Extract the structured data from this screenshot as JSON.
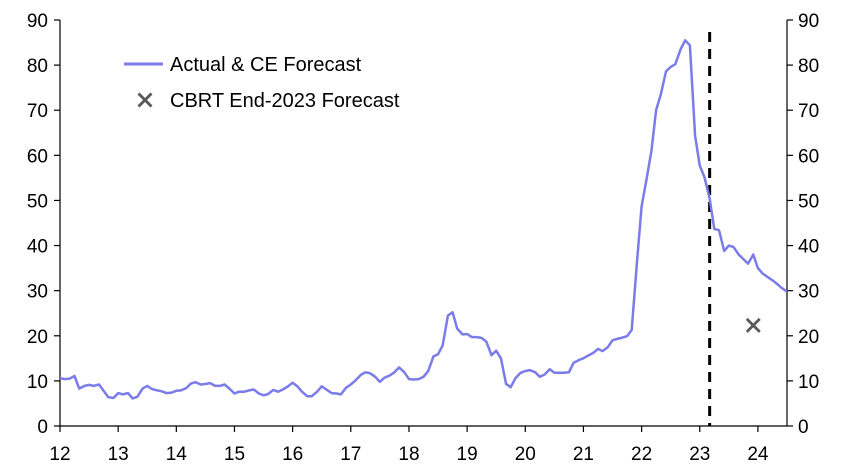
{
  "chart_data": {
    "type": "line",
    "title": "",
    "xlabel": "",
    "ylabel": "",
    "xlim": [
      12.0,
      24.5
    ],
    "ylim": [
      0,
      90
    ],
    "y_ticks": [
      0,
      10,
      20,
      30,
      40,
      50,
      60,
      70,
      80,
      90
    ],
    "x_ticks": [
      12,
      13,
      14,
      15,
      16,
      17,
      18,
      19,
      20,
      21,
      22,
      23,
      24
    ],
    "x_tick_labels": [
      "12",
      "13",
      "14",
      "15",
      "16",
      "17",
      "18",
      "19",
      "20",
      "21",
      "22",
      "23",
      "24"
    ],
    "grid": false,
    "legend_position": "top-left",
    "forecast_divider_x": 23.17,
    "series": [
      {
        "name": "Actual & CE Forecast",
        "color": "#7b7bea",
        "points": [
          [
            12.0,
            10.6
          ],
          [
            12.08,
            10.4
          ],
          [
            12.17,
            10.5
          ],
          [
            12.25,
            11.1
          ],
          [
            12.33,
            8.3
          ],
          [
            12.42,
            8.9
          ],
          [
            12.5,
            9.1
          ],
          [
            12.58,
            8.9
          ],
          [
            12.67,
            9.2
          ],
          [
            12.75,
            7.8
          ],
          [
            12.83,
            6.4
          ],
          [
            12.92,
            6.2
          ],
          [
            13.0,
            7.3
          ],
          [
            13.08,
            7.0
          ],
          [
            13.17,
            7.3
          ],
          [
            13.25,
            6.1
          ],
          [
            13.33,
            6.5
          ],
          [
            13.42,
            8.3
          ],
          [
            13.5,
            8.9
          ],
          [
            13.58,
            8.2
          ],
          [
            13.67,
            7.9
          ],
          [
            13.75,
            7.7
          ],
          [
            13.83,
            7.3
          ],
          [
            13.92,
            7.4
          ],
          [
            14.0,
            7.8
          ],
          [
            14.08,
            7.9
          ],
          [
            14.17,
            8.4
          ],
          [
            14.25,
            9.4
          ],
          [
            14.33,
            9.7
          ],
          [
            14.42,
            9.2
          ],
          [
            14.5,
            9.3
          ],
          [
            14.58,
            9.5
          ],
          [
            14.67,
            8.9
          ],
          [
            14.75,
            8.9
          ],
          [
            14.83,
            9.2
          ],
          [
            14.92,
            8.2
          ],
          [
            15.0,
            7.2
          ],
          [
            15.08,
            7.6
          ],
          [
            15.17,
            7.6
          ],
          [
            15.25,
            7.9
          ],
          [
            15.33,
            8.1
          ],
          [
            15.42,
            7.2
          ],
          [
            15.5,
            6.8
          ],
          [
            15.58,
            7.1
          ],
          [
            15.67,
            8.0
          ],
          [
            15.75,
            7.6
          ],
          [
            15.83,
            8.1
          ],
          [
            15.92,
            8.8
          ],
          [
            16.0,
            9.6
          ],
          [
            16.08,
            8.8
          ],
          [
            16.17,
            7.5
          ],
          [
            16.25,
            6.6
          ],
          [
            16.33,
            6.6
          ],
          [
            16.42,
            7.6
          ],
          [
            16.5,
            8.8
          ],
          [
            16.58,
            8.1
          ],
          [
            16.67,
            7.3
          ],
          [
            16.75,
            7.2
          ],
          [
            16.83,
            7.0
          ],
          [
            16.92,
            8.5
          ],
          [
            17.0,
            9.2
          ],
          [
            17.08,
            10.1
          ],
          [
            17.17,
            11.3
          ],
          [
            17.25,
            11.9
          ],
          [
            17.33,
            11.7
          ],
          [
            17.42,
            10.9
          ],
          [
            17.5,
            9.8
          ],
          [
            17.58,
            10.7
          ],
          [
            17.67,
            11.2
          ],
          [
            17.75,
            11.9
          ],
          [
            17.83,
            13.0
          ],
          [
            17.92,
            11.9
          ],
          [
            18.0,
            10.4
          ],
          [
            18.08,
            10.3
          ],
          [
            18.17,
            10.4
          ],
          [
            18.25,
            10.9
          ],
          [
            18.33,
            12.2
          ],
          [
            18.42,
            15.4
          ],
          [
            18.5,
            15.9
          ],
          [
            18.58,
            17.9
          ],
          [
            18.67,
            24.5
          ],
          [
            18.75,
            25.2
          ],
          [
            18.83,
            21.6
          ],
          [
            18.92,
            20.3
          ],
          [
            19.0,
            20.4
          ],
          [
            19.08,
            19.7
          ],
          [
            19.17,
            19.7
          ],
          [
            19.25,
            19.5
          ],
          [
            19.33,
            18.7
          ],
          [
            19.42,
            15.7
          ],
          [
            19.5,
            16.7
          ],
          [
            19.58,
            15.0
          ],
          [
            19.67,
            9.3
          ],
          [
            19.75,
            8.6
          ],
          [
            19.83,
            10.6
          ],
          [
            19.92,
            11.8
          ],
          [
            20.0,
            12.2
          ],
          [
            20.08,
            12.4
          ],
          [
            20.17,
            11.9
          ],
          [
            20.25,
            10.9
          ],
          [
            20.33,
            11.4
          ],
          [
            20.42,
            12.6
          ],
          [
            20.5,
            11.8
          ],
          [
            20.58,
            11.8
          ],
          [
            20.67,
            11.8
          ],
          [
            20.75,
            11.9
          ],
          [
            20.83,
            14.0
          ],
          [
            20.92,
            14.6
          ],
          [
            21.0,
            15.0
          ],
          [
            21.08,
            15.6
          ],
          [
            21.17,
            16.2
          ],
          [
            21.25,
            17.1
          ],
          [
            21.33,
            16.6
          ],
          [
            21.42,
            17.5
          ],
          [
            21.5,
            19.0
          ],
          [
            21.58,
            19.3
          ],
          [
            21.67,
            19.6
          ],
          [
            21.75,
            19.9
          ],
          [
            21.83,
            21.3
          ],
          [
            21.92,
            36.1
          ],
          [
            22.0,
            48.7
          ],
          [
            22.08,
            54.4
          ],
          [
            22.17,
            61.1
          ],
          [
            22.25,
            70.0
          ],
          [
            22.33,
            73.5
          ],
          [
            22.42,
            78.6
          ],
          [
            22.5,
            79.6
          ],
          [
            22.58,
            80.2
          ],
          [
            22.67,
            83.5
          ],
          [
            22.75,
            85.5
          ],
          [
            22.83,
            84.4
          ],
          [
            22.92,
            64.3
          ],
          [
            23.0,
            57.7
          ],
          [
            23.08,
            55.2
          ],
          [
            23.17,
            50.5
          ],
          [
            23.25,
            43.7
          ],
          [
            23.33,
            43.4
          ],
          [
            23.42,
            38.8
          ],
          [
            23.5,
            40.0
          ],
          [
            23.58,
            39.7
          ],
          [
            23.67,
            38.0
          ],
          [
            23.75,
            37.0
          ],
          [
            23.83,
            36.0
          ],
          [
            23.92,
            38.0
          ],
          [
            24.0,
            35.0
          ],
          [
            24.08,
            33.8
          ],
          [
            24.17,
            33.0
          ],
          [
            24.25,
            32.3
          ],
          [
            24.33,
            31.5
          ],
          [
            24.42,
            30.5
          ],
          [
            24.5,
            29.8
          ]
        ]
      },
      {
        "name": "CBRT End-2023 Forecast",
        "color": "#595959",
        "marker": "x",
        "points": [
          [
            23.92,
            22.3
          ]
        ]
      }
    ]
  }
}
